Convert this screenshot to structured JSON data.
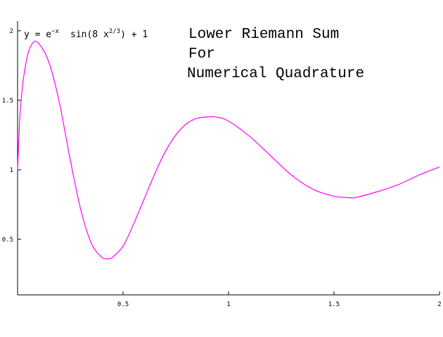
{
  "chart_data": {
    "type": "line",
    "title_lines": [
      "Lower Riemann Sum",
      "For",
      "Numerical Quadrature"
    ],
    "formula": {
      "lhs": "y = e",
      "exp1": "−x",
      "mid": "sin(8 x",
      "exp2": "2/3",
      "tail": ") + 1"
    },
    "xlabel": "",
    "ylabel": "",
    "xlim": [
      0,
      2
    ],
    "ylim": [
      0.1,
      2.07
    ],
    "xticks": [
      0.5,
      1,
      1.5,
      2
    ],
    "xtick_labels": [
      "0.5",
      "1",
      "1.5",
      "2"
    ],
    "yticks": [
      0.5,
      1,
      1.5,
      2
    ],
    "ytick_labels": [
      "0.5",
      "1",
      "1.5",
      "2"
    ],
    "grid": false,
    "legend": "none",
    "series": [
      {
        "function": "exp(-x)*sin(8*x^(2/3))+1",
        "color": "#ff00ff",
        "x": [
          0.0,
          0.01,
          0.02,
          0.03,
          0.05,
          0.075,
          0.09,
          0.1,
          0.13,
          0.16,
          0.2,
          0.25,
          0.3,
          0.35,
          0.4,
          0.43,
          0.45,
          0.5,
          0.55,
          0.6,
          0.65,
          0.7,
          0.75,
          0.8,
          0.85,
          0.9,
          0.94,
          1.0,
          1.1,
          1.2,
          1.3,
          1.4,
          1.5,
          1.57,
          1.6,
          1.7,
          1.8,
          1.9,
          2.0
        ],
        "values": [
          1.0,
          1.36,
          1.55,
          1.68,
          1.84,
          1.92,
          1.92,
          1.91,
          1.84,
          1.72,
          1.47,
          1.07,
          0.71,
          0.47,
          0.37,
          0.36,
          0.37,
          0.45,
          0.61,
          0.79,
          0.97,
          1.13,
          1.25,
          1.33,
          1.37,
          1.38,
          1.38,
          1.35,
          1.24,
          1.1,
          0.96,
          0.86,
          0.81,
          0.8,
          0.8,
          0.84,
          0.89,
          0.96,
          1.02
        ]
      }
    ]
  }
}
